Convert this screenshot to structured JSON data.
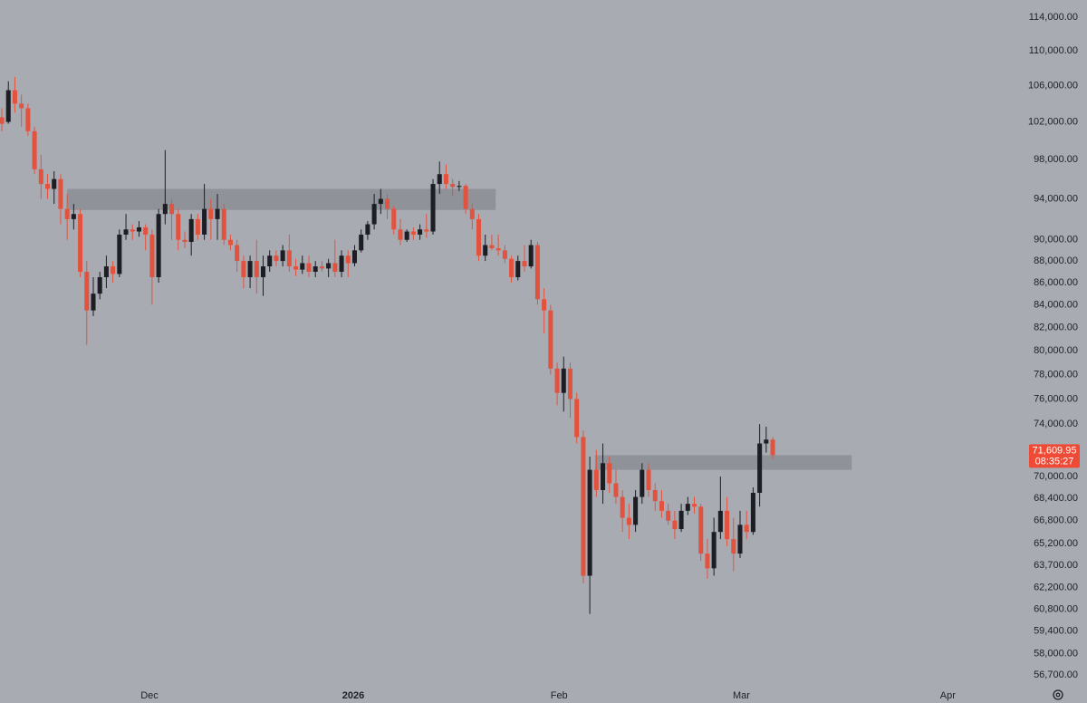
{
  "chart_data": {
    "type": "candlestick",
    "log_scale": true,
    "grid": false,
    "up_color": "#1c1e24",
    "down_color": "#e2533f",
    "zone_color": "#8b8d94",
    "open": [
      102500,
      102000,
      105500,
      104000,
      103500,
      101000,
      97000,
      95500,
      95000,
      96000,
      93000,
      92000,
      92500,
      87000,
      83500,
      85000,
      86500,
      87500,
      86800,
      90500,
      91000,
      90800,
      91200,
      90500,
      86500,
      92500,
      93500,
      92500,
      90000,
      89800,
      92000,
      90500,
      93000,
      92000,
      93000,
      90000,
      89500,
      88000,
      86500,
      88000,
      86500,
      87500,
      88500,
      88000,
      89000,
      87500,
      87200,
      87800,
      87000,
      87500,
      87300,
      87800,
      87000,
      88500,
      87800,
      89000,
      90500,
      91500,
      93500,
      94000,
      93000,
      91000,
      90000,
      90800,
      90500,
      91000,
      90800,
      95500,
      96500,
      95500,
      95200,
      95300,
      93000,
      92000,
      88500,
      89500,
      89200,
      89000,
      88200,
      86500,
      88000,
      87500,
      89500,
      84500,
      83500,
      78500,
      76500,
      78500,
      76000,
      73000,
      63000,
      70500,
      69000,
      71000,
      69500,
      68500,
      67000,
      66500,
      68500,
      70500,
      69000,
      68200,
      67500,
      66800,
      66200,
      67500,
      68000,
      67800,
      64500,
      63500,
      66000,
      67500,
      65500,
      64500,
      66500,
      66000,
      68800,
      72500,
      72800
    ],
    "high": [
      103500,
      106500,
      107000,
      105000,
      104000,
      101500,
      98500,
      96500,
      96800,
      96500,
      94500,
      93500,
      93000,
      88000,
      86500,
      87000,
      88500,
      88000,
      91000,
      92500,
      91500,
      91800,
      91500,
      91000,
      93000,
      99000,
      94000,
      93000,
      90800,
      92500,
      92500,
      95500,
      94000,
      94500,
      93500,
      90500,
      90000,
      88500,
      88500,
      90000,
      88500,
      89000,
      89000,
      89500,
      90500,
      88200,
      88500,
      88500,
      88000,
      88000,
      88200,
      90000,
      89000,
      89000,
      89500,
      91000,
      91800,
      94500,
      95000,
      94500,
      93300,
      92000,
      91000,
      91200,
      91500,
      92500,
      96000,
      97800,
      97500,
      96000,
      95800,
      95500,
      93500,
      92500,
      90500,
      90500,
      90500,
      89500,
      88500,
      88500,
      89500,
      90000,
      89800,
      85500,
      84000,
      79000,
      79500,
      79000,
      76500,
      73500,
      71500,
      72000,
      72500,
      71500,
      70500,
      69000,
      68000,
      69000,
      71000,
      71000,
      69500,
      69000,
      68000,
      67500,
      68000,
      68500,
      68500,
      68000,
      65500,
      67000,
      70000,
      68500,
      67000,
      67500,
      67500,
      69200,
      74000,
      73800,
      73000
    ],
    "low": [
      101000,
      101800,
      103000,
      101500,
      100500,
      96500,
      94000,
      94000,
      93500,
      91500,
      90000,
      91000,
      86500,
      80500,
      83000,
      84500,
      85500,
      86000,
      86500,
      90000,
      90000,
      90300,
      89000,
      84000,
      86000,
      91500,
      90000,
      89000,
      89200,
      88500,
      90000,
      90000,
      90000,
      90000,
      89500,
      89000,
      87000,
      85500,
      85500,
      85000,
      84800,
      87000,
      87500,
      87500,
      87000,
      86600,
      86800,
      86500,
      86500,
      87000,
      86500,
      86500,
      86500,
      86500,
      87500,
      88800,
      90000,
      91000,
      92500,
      92000,
      90500,
      89500,
      89800,
      90000,
      90000,
      90200,
      90500,
      94500,
      95000,
      94300,
      94800,
      92500,
      91000,
      88000,
      88000,
      89000,
      88500,
      87800,
      86000,
      86200,
      87000,
      87300,
      84000,
      81500,
      78000,
      75500,
      75000,
      74500,
      72500,
      62500,
      60500,
      68500,
      68000,
      68800,
      68000,
      66000,
      65500,
      66000,
      68000,
      68500,
      67500,
      67000,
      66500,
      65500,
      66000,
      67200,
      67300,
      64000,
      62800,
      63000,
      65500,
      65000,
      63300,
      64200,
      65500,
      65800,
      67800,
      71800,
      71300
    ],
    "close": [
      101800,
      105500,
      104000,
      103500,
      101000,
      97000,
      95500,
      95000,
      96000,
      93000,
      92000,
      92500,
      87000,
      83500,
      85000,
      86500,
      87500,
      86800,
      90500,
      91000,
      90800,
      91200,
      90500,
      86500,
      92500,
      93500,
      92500,
      90000,
      89800,
      92000,
      90500,
      93000,
      92000,
      93000,
      90000,
      89500,
      88000,
      86500,
      88000,
      86500,
      87500,
      88500,
      88000,
      89000,
      87500,
      87200,
      87800,
      87000,
      87500,
      87300,
      87800,
      87000,
      88500,
      87800,
      89000,
      90500,
      91500,
      93500,
      94000,
      93000,
      91000,
      90000,
      90800,
      90500,
      91000,
      90800,
      95500,
      96500,
      95500,
      95200,
      95300,
      93000,
      92000,
      88500,
      89500,
      89200,
      89000,
      88200,
      86500,
      88000,
      87500,
      89500,
      84500,
      83500,
      78500,
      76500,
      78500,
      76000,
      73000,
      63000,
      70500,
      69000,
      71000,
      69500,
      68500,
      67000,
      66500,
      68500,
      70500,
      69000,
      68200,
      67500,
      66800,
      66200,
      67500,
      68000,
      67800,
      64500,
      63500,
      66000,
      67500,
      65500,
      64500,
      66500,
      66000,
      68800,
      72500,
      72800,
      71609.95
    ],
    "xlim": [
      -0.28,
      156.4
    ],
    "xticks": [
      {
        "value": 22.6,
        "label": "Dec"
      },
      {
        "value": 53.8,
        "label": "2026"
      },
      {
        "value": 85.3,
        "label": "Feb"
      },
      {
        "value": 113.2,
        "label": "Mar"
      },
      {
        "value": 144.8,
        "label": "Apr"
      }
    ],
    "ylim": [
      56000,
      116100
    ],
    "yticks": [
      {
        "value": 114000,
        "label": "114,000.00"
      },
      {
        "value": 110000,
        "label": "110,000.00"
      },
      {
        "value": 106000,
        "label": "106,000.00"
      },
      {
        "value": 102000,
        "label": "102,000.00"
      },
      {
        "value": 98000,
        "label": "98,000.00"
      },
      {
        "value": 94000,
        "label": "94,000.00"
      },
      {
        "value": 90000,
        "label": "90,000.00"
      },
      {
        "value": 88000,
        "label": "88,000.00"
      },
      {
        "value": 86000,
        "label": "86,000.00"
      },
      {
        "value": 84000,
        "label": "84,000.00"
      },
      {
        "value": 82000,
        "label": "82,000.00"
      },
      {
        "value": 80000,
        "label": "80,000.00"
      },
      {
        "value": 78000,
        "label": "78,000.00"
      },
      {
        "value": 76000,
        "label": "76,000.00"
      },
      {
        "value": 74000,
        "label": "74,000.00"
      },
      {
        "value": 72000,
        "label": "72,000.00"
      },
      {
        "value": 70000,
        "label": "70,000.00"
      },
      {
        "value": 68400,
        "label": "68,400.00"
      },
      {
        "value": 66800,
        "label": "66,800.00"
      },
      {
        "value": 65200,
        "label": "65,200.00"
      },
      {
        "value": 63700,
        "label": "63,700.00"
      },
      {
        "value": 62200,
        "label": "62,200.00"
      },
      {
        "value": 60800,
        "label": "60,800.00"
      },
      {
        "value": 59400,
        "label": "59,400.00"
      },
      {
        "value": 58000,
        "label": "58,000.00"
      },
      {
        "value": 56700,
        "label": "56,700.00"
      }
    ],
    "zones": [
      {
        "x": [
          10.0,
          75.6
        ],
        "y": [
          92900,
          95000
        ]
      },
      {
        "x": [
          90.8,
          130.1
        ],
        "y": [
          70500,
          71600
        ]
      }
    ],
    "last_price": {
      "value": 71609.95,
      "label": "71,609.95"
    },
    "countdown": "08:35:27",
    "last_price_color": "#ee4a35"
  }
}
